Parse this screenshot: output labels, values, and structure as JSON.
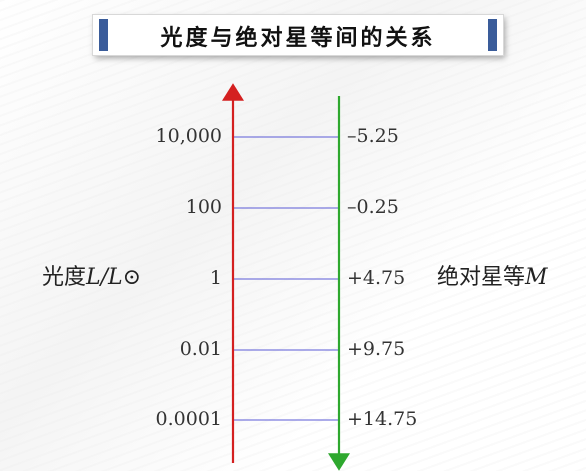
{
  "title": "光度与绝对星等间的关系",
  "left_axis_title": {
    "prefix": "光度",
    "symbol": "L/L⊙"
  },
  "right_axis_title": {
    "prefix": "绝对星等",
    "symbol": "M"
  },
  "rows": [
    {
      "luminosity": "10,000",
      "magnitude": "–5.25"
    },
    {
      "luminosity": "100",
      "magnitude": "–0.25"
    },
    {
      "luminosity": "1",
      "magnitude": "+4.75"
    },
    {
      "luminosity": "0.01",
      "magnitude": "+9.75"
    },
    {
      "luminosity": "0.0001",
      "magnitude": "+14.75"
    }
  ],
  "colors": {
    "left_axis": "#d42020",
    "right_axis": "#2ea82e",
    "connector": "#5a5ad6",
    "title_accent": "#3a5c9a"
  }
}
